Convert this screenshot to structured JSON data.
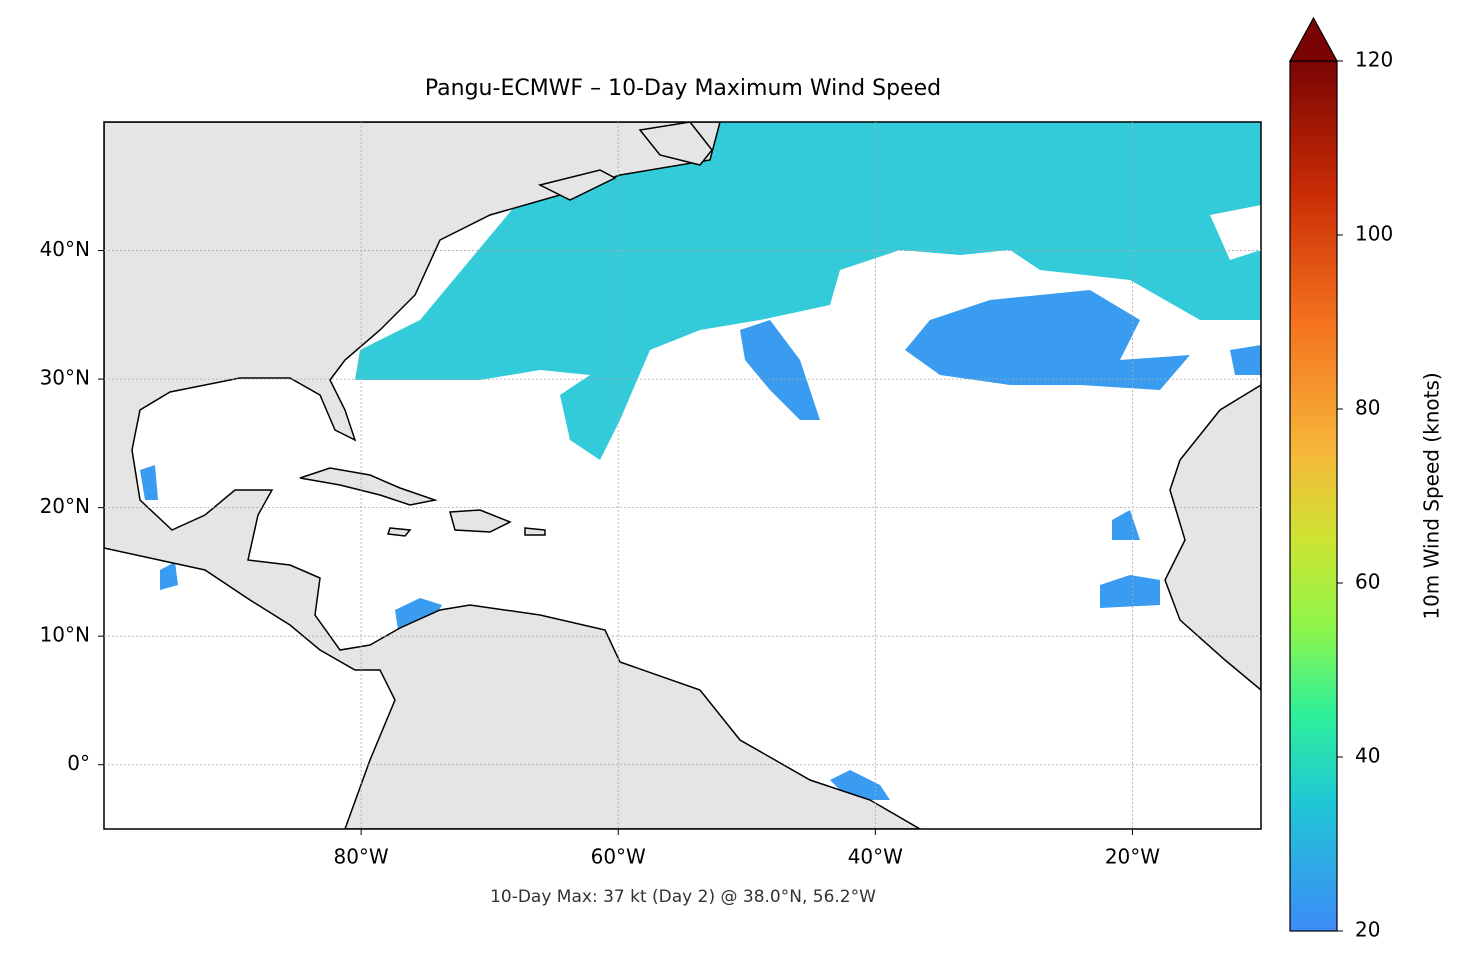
{
  "map": {
    "title": "Pangu-ECMWF – 10-Day Maximum Wind Speed",
    "annotation": "10-Day Max: 37 kt (Day 2) @ 38.0°N, 56.2°W",
    "xlim": [
      -100,
      -10
    ],
    "ylim": [
      -5,
      50
    ],
    "xticks": [
      {
        "value": -80,
        "label": "80°W"
      },
      {
        "value": -60,
        "label": "60°W"
      },
      {
        "value": -40,
        "label": "40°W"
      },
      {
        "value": -20,
        "label": "20°W"
      }
    ],
    "yticks": [
      {
        "value": 0,
        "label": "0°"
      },
      {
        "value": 10,
        "label": "10°N"
      },
      {
        "value": 20,
        "label": "20°N"
      },
      {
        "value": 30,
        "label": "30°N"
      },
      {
        "value": 40,
        "label": "40°N"
      }
    ],
    "grid": true
  },
  "colorbar": {
    "label": "10m Wind Speed (knots)",
    "lim": [
      20,
      120
    ],
    "ticks": [
      20,
      40,
      60,
      80,
      100,
      120
    ],
    "extend": "max"
  }
}
